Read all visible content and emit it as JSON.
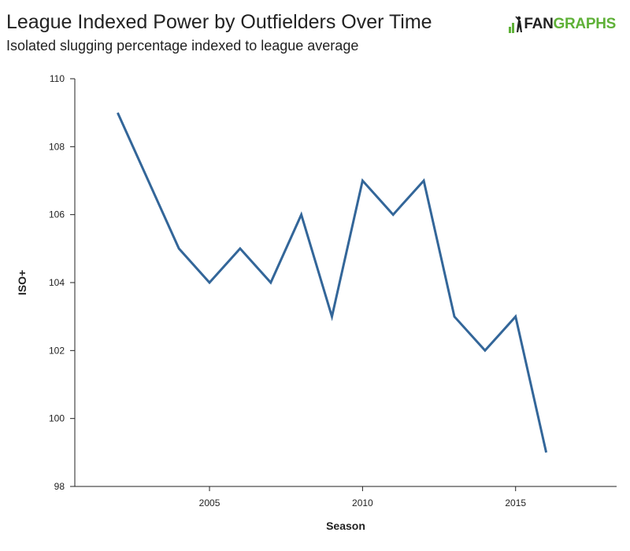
{
  "header": {
    "title": "League Indexed Power by Outfielders Over Time",
    "subtitle": "Isolated slugging percentage indexed to league average"
  },
  "logo": {
    "fan": "FAN",
    "graphs": "GRAPHS",
    "icon": "fangraphs-batter-icon",
    "brand_color": "#5fb138"
  },
  "chart_data": {
    "type": "line",
    "title": "League Indexed Power by Outfielders Over Time",
    "subtitle": "Isolated slugging percentage indexed to league average",
    "xlabel": "Season",
    "ylabel": "ISO+",
    "xlim": [
      2000.6,
      2018.3
    ],
    "ylim": [
      98,
      110
    ],
    "xticks": [
      2005,
      2010,
      2015
    ],
    "yticks": [
      98,
      100,
      102,
      104,
      106,
      108,
      110
    ],
    "grid": false,
    "line_color": "#336699",
    "series": [
      {
        "x": [
          2002,
          2003,
          2004,
          2005,
          2006,
          2007,
          2008,
          2009,
          2010,
          2011,
          2012,
          2013,
          2014,
          2015,
          2016
        ],
        "y": [
          109,
          107,
          105,
          104,
          105,
          104,
          106,
          103,
          107,
          106,
          107,
          103,
          102,
          103,
          99
        ]
      }
    ]
  }
}
